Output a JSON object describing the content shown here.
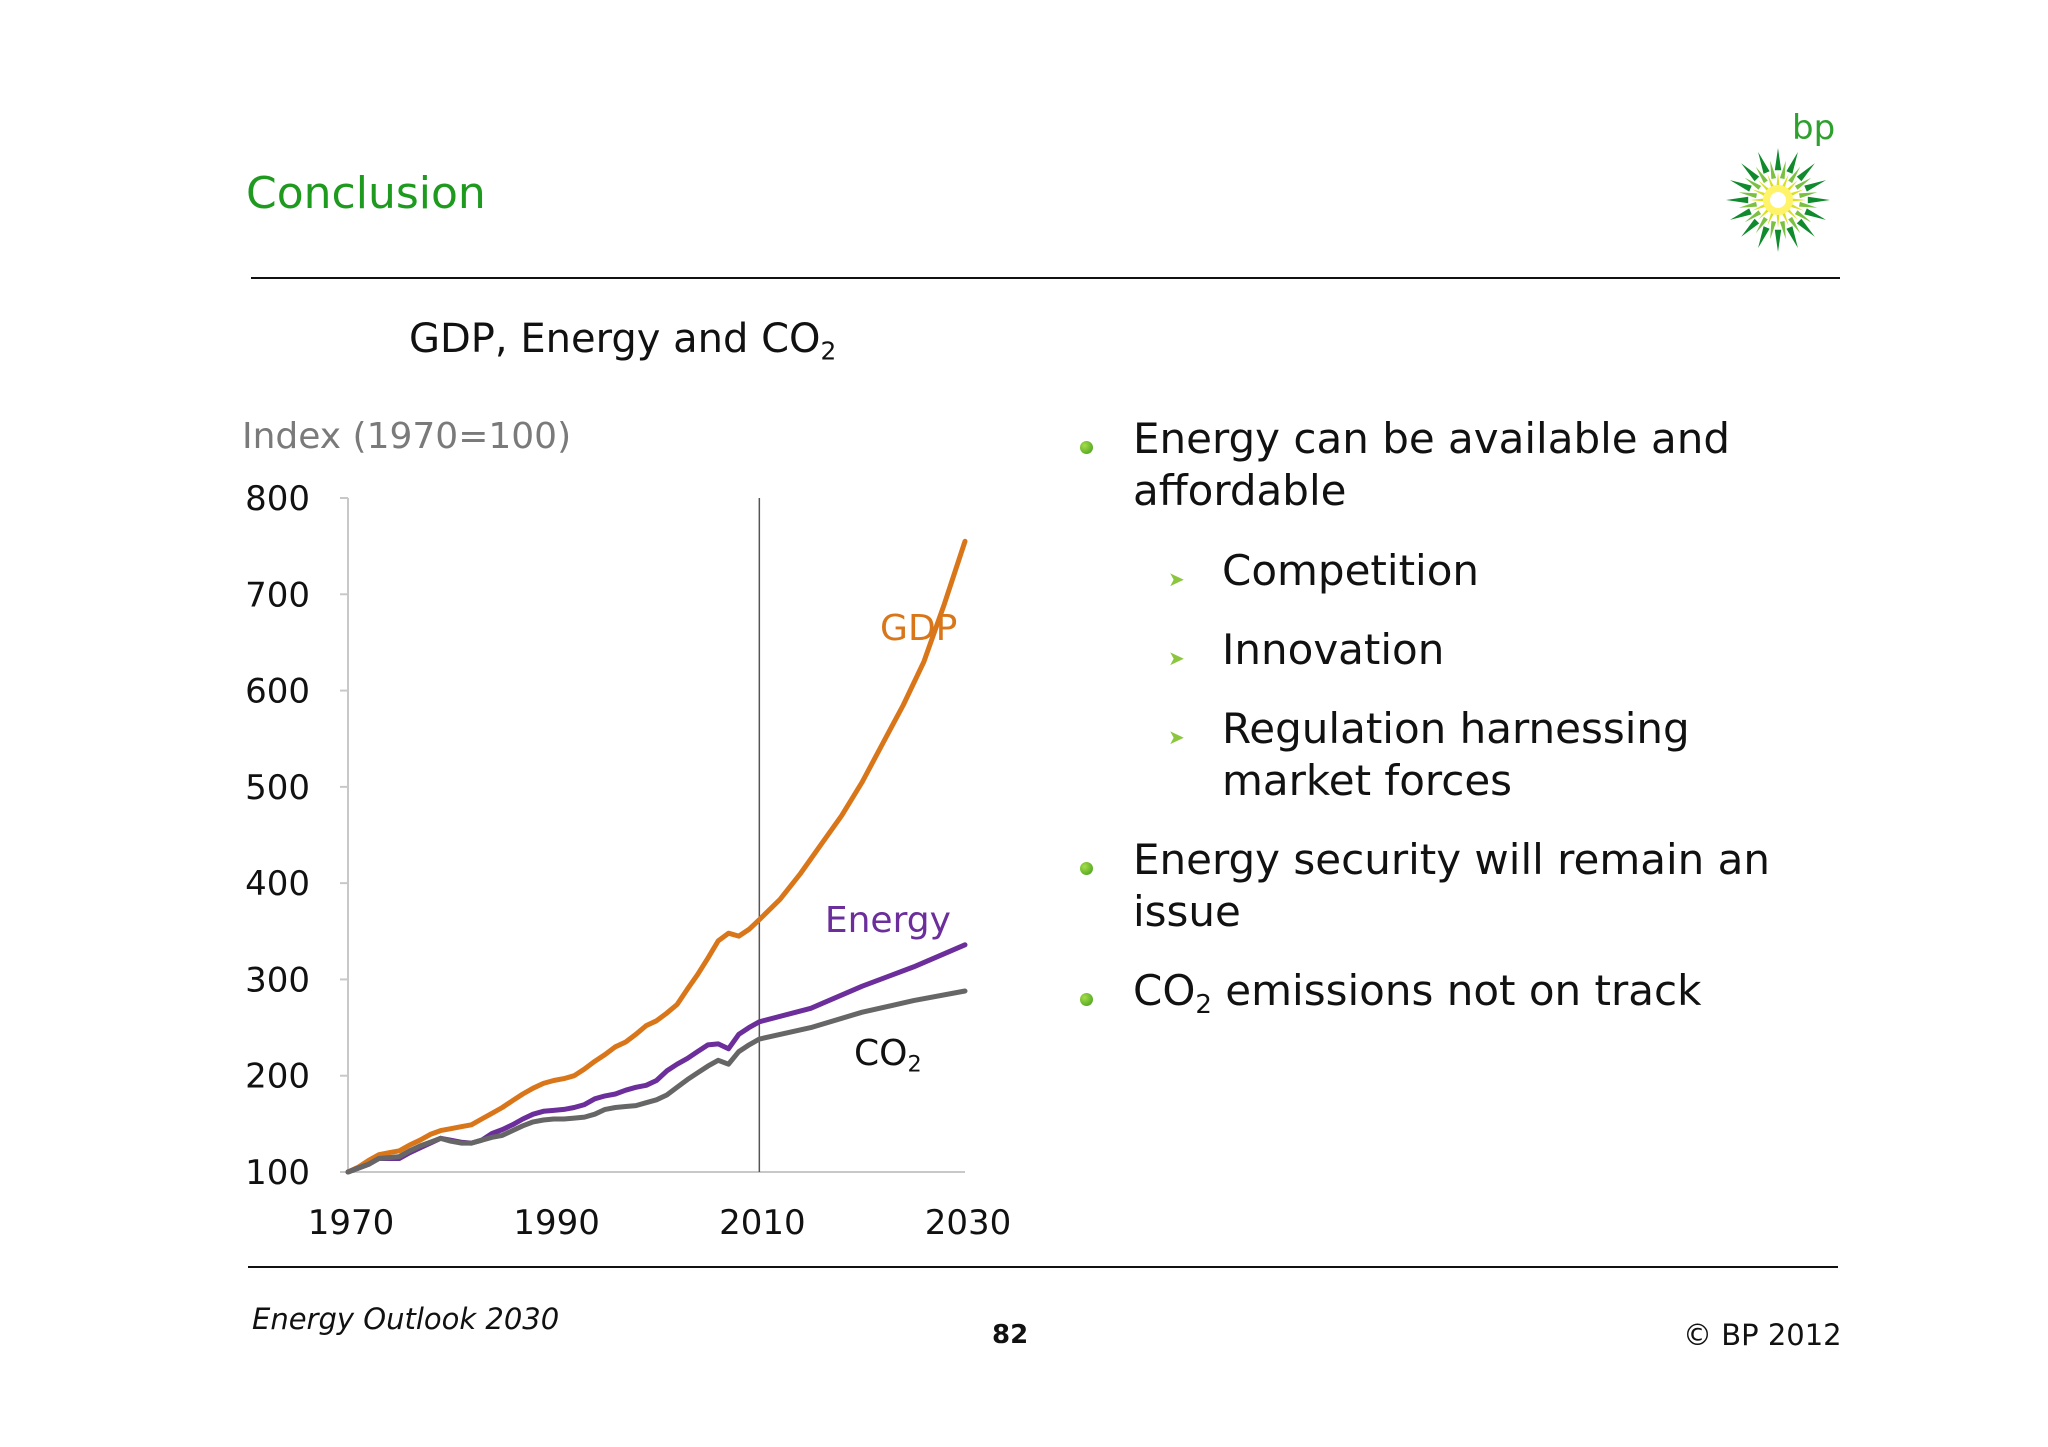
{
  "slide": {
    "title": "Conclusion",
    "logo_text": "bp",
    "footer_left": "Energy Outlook 2030",
    "page_number": "82",
    "copyright": "© BP 2012"
  },
  "bullets": [
    {
      "level": 1,
      "lines": [
        "Energy can be available and",
        "affordable"
      ]
    },
    {
      "level": 2,
      "lines": [
        "Competition"
      ]
    },
    {
      "level": 2,
      "lines": [
        "Innovation"
      ]
    },
    {
      "level": 2,
      "lines": [
        "Regulation harnessing",
        "market forces"
      ]
    },
    {
      "level": 1,
      "lines": [
        "Energy security will remain an",
        "issue"
      ]
    },
    {
      "level": 1,
      "lines": [
        "CO",
        "2",
        " emissions not on track"
      ],
      "subscript_index": 1
    }
  ],
  "chart_data": {
    "type": "line",
    "title_main": "GDP, Energy and CO",
    "title_sub": "2",
    "ylabel": "Index (1970=100)",
    "xlabel": "",
    "xlim": [
      1970,
      2030
    ],
    "ylim": [
      100,
      800
    ],
    "x_ticks": [
      1970,
      1990,
      2010,
      2030
    ],
    "y_ticks": [
      100,
      200,
      300,
      400,
      500,
      600,
      700,
      800
    ],
    "forecast_divider_x": 2010,
    "grid": false,
    "legend": "inline labels",
    "series": [
      {
        "name": "GDP",
        "color": "#d9761a",
        "x": [
          1970,
          1971,
          1972,
          1973,
          1974,
          1975,
          1976,
          1977,
          1978,
          1979,
          1980,
          1981,
          1982,
          1983,
          1984,
          1985,
          1986,
          1987,
          1988,
          1989,
          1990,
          1991,
          1992,
          1993,
          1994,
          1995,
          1996,
          1997,
          1998,
          1999,
          2000,
          2001,
          2002,
          2003,
          2004,
          2005,
          2006,
          2007,
          2008,
          2009,
          2010,
          2012,
          2014,
          2016,
          2018,
          2020,
          2022,
          2024,
          2026,
          2028,
          2030
        ],
        "values": [
          100,
          105,
          112,
          118,
          120,
          122,
          128,
          133,
          139,
          143,
          145,
          147,
          149,
          155,
          161,
          167,
          174,
          181,
          187,
          192,
          195,
          197,
          200,
          207,
          215,
          222,
          230,
          235,
          243,
          252,
          257,
          265,
          274,
          290,
          305,
          322,
          340,
          348,
          345,
          352,
          362,
          383,
          410,
          440,
          470,
          505,
          545,
          585,
          630,
          690,
          755
        ]
      },
      {
        "name": "Energy",
        "color": "#6b2e9b",
        "x": [
          1970,
          1971,
          1972,
          1973,
          1974,
          1975,
          1976,
          1977,
          1978,
          1979,
          1980,
          1981,
          1982,
          1983,
          1984,
          1985,
          1986,
          1987,
          1988,
          1989,
          1990,
          1991,
          1992,
          1993,
          1994,
          1995,
          1996,
          1997,
          1998,
          1999,
          2000,
          2001,
          2002,
          2003,
          2004,
          2005,
          2006,
          2007,
          2008,
          2009,
          2010,
          2015,
          2020,
          2025,
          2030
        ],
        "values": [
          100,
          104,
          108,
          114,
          114,
          114,
          120,
          125,
          130,
          135,
          133,
          131,
          130,
          133,
          140,
          144,
          149,
          155,
          160,
          163,
          164,
          165,
          167,
          170,
          176,
          179,
          181,
          185,
          188,
          190,
          195,
          205,
          212,
          218,
          225,
          232,
          233,
          228,
          243,
          250,
          256,
          270,
          293,
          313,
          336
        ]
      },
      {
        "name": "CO2",
        "label_main": "CO",
        "label_sub": "2",
        "color": "#666666",
        "x": [
          1970,
          1971,
          1972,
          1973,
          1974,
          1975,
          1976,
          1977,
          1978,
          1979,
          1980,
          1981,
          1982,
          1983,
          1984,
          1985,
          1986,
          1987,
          1988,
          1989,
          1990,
          1991,
          1992,
          1993,
          1994,
          1995,
          1996,
          1997,
          1998,
          1999,
          2000,
          2001,
          2002,
          2003,
          2004,
          2005,
          2006,
          2007,
          2008,
          2009,
          2010,
          2015,
          2020,
          2025,
          2030
        ],
        "values": [
          100,
          104,
          108,
          114,
          115,
          116,
          122,
          127,
          131,
          135,
          132,
          130,
          130,
          133,
          136,
          138,
          143,
          148,
          152,
          154,
          155,
          155,
          156,
          157,
          160,
          165,
          167,
          168,
          169,
          172,
          175,
          180,
          188,
          196,
          203,
          210,
          216,
          212,
          225,
          232,
          238,
          250,
          266,
          278,
          288
        ]
      }
    ]
  }
}
